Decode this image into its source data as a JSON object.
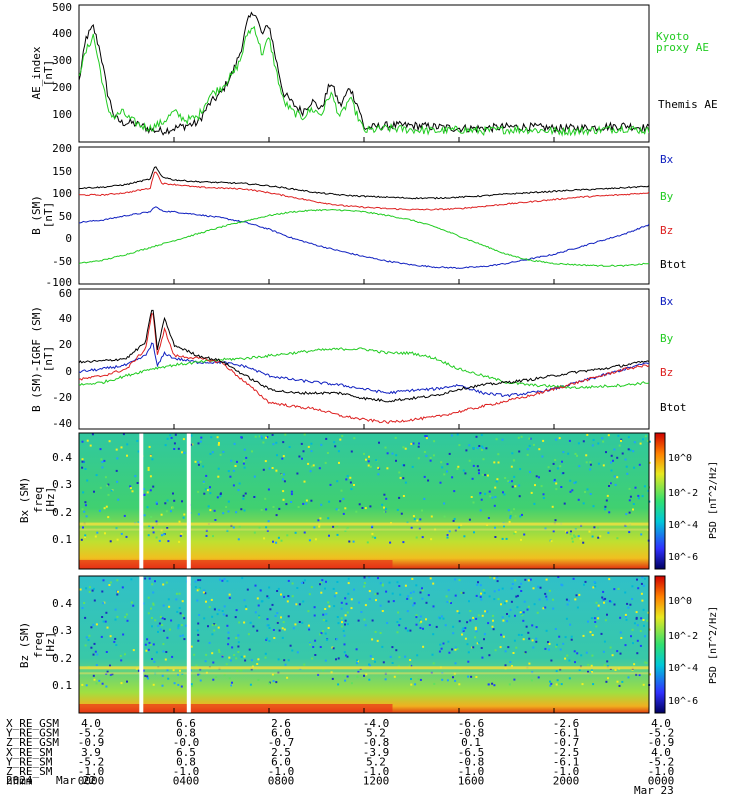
{
  "panels": {
    "ae": {
      "ylabel_top": "AE_index",
      "ylabel_bottom": "[nT]",
      "yticks": [
        "500",
        "400",
        "300",
        "200",
        "100"
      ],
      "legend": [
        {
          "text": "Kyoto",
          "color": "#22cc22"
        },
        {
          "text": "proxy AE",
          "color": "#22cc22"
        },
        {
          "text": "Themis AE",
          "color": "#000000"
        }
      ]
    },
    "b_sm": {
      "ylabel_top": "B (SM)",
      "ylabel_bottom": "[nT]",
      "yticks": [
        "200",
        "150",
        "100",
        "50",
        "0",
        "-50",
        "-100"
      ],
      "legend": [
        {
          "text": "Bx",
          "color": "#1020c0"
        },
        {
          "text": "By",
          "color": "#22cc22"
        },
        {
          "text": "Bz",
          "color": "#dd2020"
        },
        {
          "text": "Btot",
          "color": "#000000"
        }
      ]
    },
    "b_igrf": {
      "ylabel_top": "B (SM)-IGRF (SM)",
      "ylabel_bottom": "[nT]",
      "yticks": [
        "60",
        "40",
        "20",
        "0",
        "-20",
        "-40"
      ],
      "legend": [
        {
          "text": "Bx",
          "color": "#1020c0"
        },
        {
          "text": "By",
          "color": "#22cc22"
        },
        {
          "text": "Bz",
          "color": "#dd2020"
        },
        {
          "text": "Btot",
          "color": "#000000"
        }
      ]
    },
    "spec_bx": {
      "ylabel_top": "Bx (SM)",
      "ylabel_mid": "freq",
      "ylabel_bottom": "[Hz]",
      "yticks": [
        "0.4",
        "0.3",
        "0.2",
        "0.1"
      ],
      "cbar_label": "PSD [nT^2/Hz]",
      "cbar_ticks": [
        "10^0",
        "10^-2",
        "10^-4",
        "10^-6"
      ]
    },
    "spec_bz": {
      "ylabel_top": "Bz (SM)",
      "ylabel_mid": "freq",
      "ylabel_bottom": "[Hz]",
      "yticks": [
        "0.4",
        "0.3",
        "0.2",
        "0.1"
      ],
      "cbar_label": "PSD [nT^2/Hz]",
      "cbar_ticks": [
        "10^0",
        "10^-2",
        "10^-4",
        "10^-6"
      ]
    }
  },
  "ephemeris": {
    "rows": [
      {
        "label": "X_RE_GSM",
        "values": [
          "4.0",
          "6.6",
          "2.6",
          "-4.0",
          "-6.6",
          "-2.6",
          "4.0"
        ]
      },
      {
        "label": "Y_RE_GSM",
        "values": [
          "-5.2",
          "0.8",
          "6.0",
          "5.2",
          "-0.8",
          "-6.1",
          "-5.2"
        ]
      },
      {
        "label": "Z_RE_GSM",
        "values": [
          "-0.9",
          "-0.0",
          "-0.7",
          "-0.8",
          "0.1",
          "-0.7",
          "-0.9"
        ]
      },
      {
        "label": "X_RE_SM",
        "values": [
          "3.9",
          "6.5",
          "2.5",
          "-3.9",
          "-6.5",
          "-2.5",
          "4.0"
        ]
      },
      {
        "label": "Y_RE_SM",
        "values": [
          "-5.2",
          "0.8",
          "6.0",
          "5.2",
          "-0.8",
          "-6.1",
          "-5.2"
        ]
      },
      {
        "label": "Z_RE_SM",
        "values": [
          "-1.0",
          "-1.0",
          "-1.0",
          "-1.0",
          "-1.0",
          "-1.0",
          "-1.0"
        ]
      },
      {
        "label": "hhmm",
        "values": [
          "0000",
          "0400",
          "0800",
          "1200",
          "1600",
          "2000",
          "0000"
        ]
      }
    ],
    "year": "2024",
    "date_start": "Mar 22",
    "date_end": "Mar 23"
  },
  "chart_data": [
    {
      "type": "line",
      "x_unit": "hours since 2024 Mar 22 0000",
      "xlim": [
        0,
        24
      ],
      "ylim": [
        0,
        500
      ],
      "series": [
        {
          "name": "Themis AE",
          "color": "#000000",
          "x": [
            0,
            0.3,
            0.6,
            0.9,
            1.2,
            1.5,
            1.8,
            2.2,
            2.6,
            3.0,
            3.5,
            4.0,
            4.5,
            5.0,
            5.5,
            6.0,
            6.5,
            6.8,
            7.1,
            7.4,
            7.7,
            8.0,
            8.3,
            8.6,
            9.0,
            9.4,
            9.8,
            10.2,
            10.6,
            11.0,
            11.4,
            11.8,
            12.0,
            12.5,
            13,
            14,
            15,
            16,
            17,
            18,
            19,
            20,
            21,
            22,
            23,
            24
          ],
          "y": [
            220,
            380,
            420,
            330,
            180,
            90,
            70,
            70,
            60,
            45,
            40,
            50,
            60,
            70,
            140,
            180,
            260,
            330,
            440,
            480,
            390,
            430,
            300,
            180,
            140,
            110,
            150,
            120,
            220,
            130,
            200,
            120,
            50,
            55,
            60,
            60,
            55,
            50,
            50,
            55,
            55,
            50,
            50,
            55,
            60,
            50
          ]
        },
        {
          "name": "Kyoto proxy AE",
          "color": "#22cc22",
          "x": [
            0,
            0.3,
            0.6,
            0.9,
            1.2,
            1.5,
            1.8,
            2.2,
            2.6,
            3.0,
            3.5,
            4.0,
            4.5,
            5.0,
            5.5,
            6.0,
            6.5,
            6.8,
            7.1,
            7.4,
            7.7,
            8.0,
            8.3,
            8.6,
            9.0,
            9.4,
            9.8,
            10.2,
            10.6,
            11.0,
            11.4,
            11.8,
            12.0,
            12.5,
            13,
            14,
            15,
            16,
            17,
            18,
            19,
            20,
            21,
            22,
            23,
            24
          ],
          "y": [
            250,
            330,
            390,
            260,
            120,
            90,
            110,
            80,
            60,
            50,
            70,
            110,
            80,
            90,
            170,
            200,
            250,
            300,
            400,
            420,
            320,
            380,
            260,
            150,
            110,
            90,
            120,
            100,
            180,
            90,
            160,
            80,
            40,
            45,
            50,
            45,
            40,
            45,
            40,
            45,
            45,
            40,
            40,
            45,
            50,
            40
          ]
        }
      ]
    },
    {
      "type": "line",
      "x_unit": "hours since 2024 Mar 22 0000",
      "xlim": [
        0,
        24
      ],
      "ylim": [
        -100,
        200
      ],
      "series": [
        {
          "name": "Bx",
          "color": "#1020c0",
          "x": [
            0,
            1,
            2,
            3,
            3.2,
            3.5,
            4,
            5,
            6,
            7,
            8,
            9,
            10,
            11,
            12,
            13,
            14,
            15,
            16,
            17,
            18,
            19,
            20,
            21,
            22,
            23,
            24
          ],
          "y": [
            35,
            40,
            50,
            58,
            70,
            60,
            58,
            52,
            45,
            35,
            20,
            0,
            -15,
            -28,
            -40,
            -50,
            -58,
            -63,
            -65,
            -62,
            -55,
            -45,
            -35,
            -20,
            -5,
            10,
            30
          ]
        },
        {
          "name": "By",
          "color": "#22cc22",
          "x": [
            0,
            1,
            2,
            3,
            4,
            5,
            6,
            7,
            8,
            9,
            10,
            11,
            12,
            13,
            14,
            15,
            16,
            17,
            18,
            19,
            20,
            21,
            22,
            23,
            24
          ],
          "y": [
            -55,
            -48,
            -35,
            -20,
            -5,
            10,
            25,
            38,
            50,
            58,
            62,
            62,
            58,
            50,
            40,
            25,
            5,
            -15,
            -35,
            -48,
            -55,
            -58,
            -60,
            -60,
            -55
          ]
        },
        {
          "name": "Bz",
          "color": "#dd2020",
          "x": [
            0,
            1,
            2,
            3,
            3.2,
            3.5,
            4,
            5,
            6,
            7,
            8,
            9,
            10,
            11,
            12,
            13,
            14,
            15,
            16,
            17,
            18,
            19,
            20,
            21,
            22,
            23,
            24
          ],
          "y": [
            95,
            95,
            100,
            110,
            150,
            120,
            118,
            112,
            110,
            108,
            100,
            90,
            80,
            72,
            68,
            65,
            63,
            63,
            65,
            70,
            75,
            80,
            85,
            90,
            93,
            96,
            100
          ]
        },
        {
          "name": "Btot",
          "color": "#000000",
          "x": [
            0,
            1,
            2,
            3,
            3.2,
            3.5,
            4,
            5,
            6,
            7,
            8,
            9,
            10,
            11,
            12,
            13,
            14,
            15,
            16,
            17,
            18,
            19,
            20,
            21,
            22,
            23,
            24
          ],
          "y": [
            110,
            112,
            118,
            130,
            158,
            135,
            128,
            124,
            122,
            120,
            115,
            108,
            100,
            95,
            92,
            90,
            88,
            88,
            90,
            93,
            97,
            100,
            103,
            106,
            108,
            111,
            114
          ]
        }
      ]
    },
    {
      "type": "line",
      "x_unit": "hours since 2024 Mar 22 0000",
      "xlim": [
        0,
        24
      ],
      "ylim": [
        -45,
        60
      ],
      "series": [
        {
          "name": "Bx",
          "color": "#1020c0",
          "x": [
            0,
            1,
            2,
            2.8,
            3.1,
            3.3,
            3.6,
            4,
            5,
            6,
            7,
            8,
            9,
            10,
            11,
            12,
            13,
            14,
            15,
            16,
            17,
            18,
            19,
            20,
            21,
            22,
            23,
            24
          ],
          "y": [
            -2,
            0,
            3,
            10,
            20,
            2,
            12,
            8,
            5,
            5,
            2,
            -5,
            -8,
            -10,
            -12,
            -15,
            -18,
            -16,
            -15,
            -12,
            -18,
            -20,
            -18,
            -15,
            -10,
            -5,
            0,
            5
          ]
        },
        {
          "name": "By",
          "color": "#22cc22",
          "x": [
            0,
            1,
            2,
            3,
            4,
            5,
            6,
            7,
            8,
            9,
            10,
            11,
            12,
            13,
            14,
            15,
            16,
            17,
            18,
            19,
            20,
            21,
            22,
            23,
            24
          ],
          "y": [
            -12,
            -10,
            -5,
            0,
            3,
            5,
            7,
            8,
            10,
            12,
            14,
            15,
            15,
            12,
            12,
            8,
            0,
            -5,
            -10,
            -12,
            -13,
            -14,
            -13,
            -12,
            -10
          ]
        },
        {
          "name": "Bz",
          "color": "#dd2020",
          "x": [
            0,
            1,
            2,
            2.8,
            3.1,
            3.3,
            3.6,
            4,
            5,
            6,
            7,
            8,
            9,
            10,
            11,
            12,
            13,
            14,
            15,
            16,
            17,
            18,
            19,
            20,
            21,
            22,
            23,
            24
          ],
          "y": [
            -8,
            -5,
            0,
            15,
            45,
            10,
            30,
            10,
            8,
            5,
            -10,
            -25,
            -28,
            -30,
            -35,
            -38,
            -40,
            -38,
            -36,
            -32,
            -28,
            -24,
            -20,
            -15,
            -10,
            -5,
            0,
            3
          ]
        },
        {
          "name": "Btot",
          "color": "#000000",
          "x": [
            0,
            1,
            2,
            2.8,
            3.1,
            3.3,
            3.6,
            4,
            5,
            6,
            7,
            8,
            9,
            10,
            11,
            12,
            13,
            14,
            15,
            16,
            17,
            18,
            19,
            20,
            21,
            22,
            23,
            24
          ],
          "y": [
            5,
            6,
            8,
            20,
            48,
            15,
            38,
            18,
            10,
            6,
            -5,
            -15,
            -18,
            -18,
            -18,
            -22,
            -24,
            -22,
            -20,
            -15,
            -12,
            -10,
            -8,
            -5,
            -2,
            0,
            3,
            6
          ]
        }
      ]
    },
    {
      "type": "heatmap",
      "x_unit": "hours since 2024 Mar 22 0000",
      "xlim": [
        0,
        24
      ],
      "ylim": [
        0,
        0.5
      ],
      "data_gaps_hours": [
        2.6,
        4.6
      ]
    },
    {
      "type": "heatmap",
      "x_unit": "hours since 2024 Mar 22 0000",
      "xlim": [
        0,
        24
      ],
      "ylim": [
        0,
        0.5
      ],
      "data_gaps_hours": [
        2.6,
        4.6
      ]
    }
  ]
}
